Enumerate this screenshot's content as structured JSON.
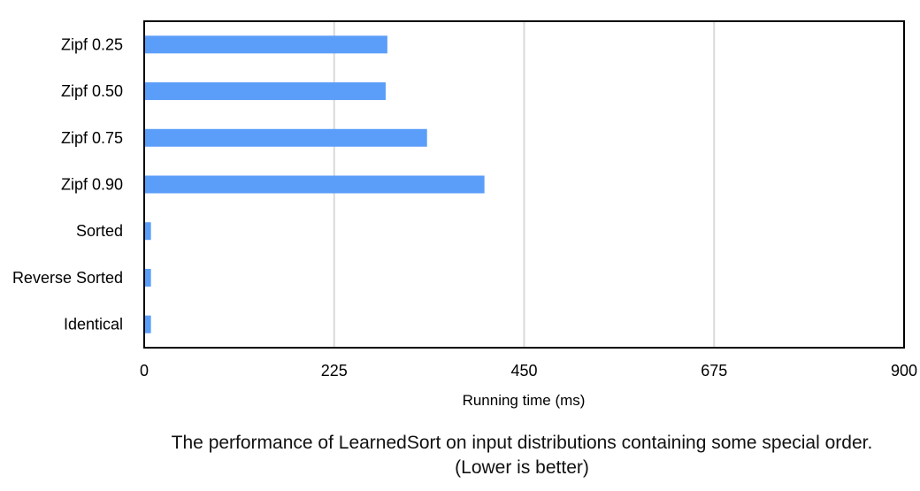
{
  "chart_data": {
    "type": "bar",
    "orientation": "horizontal",
    "categories": [
      "Zipf 0.25",
      "Zipf 0.50",
      "Zipf 0.75",
      "Zipf 0.90",
      "Sorted",
      "Reverse Sorted",
      "Identical"
    ],
    "values": [
      288,
      286,
      335,
      403,
      8,
      8,
      8
    ],
    "xlabel": "Running time (ms)",
    "ylabel": "",
    "xlim": [
      0,
      900
    ],
    "xticks": [
      "0",
      "225",
      "450",
      "675",
      "900"
    ],
    "grid": true,
    "bar_color": "#5b9ef9",
    "grid_color": "#d9d9d9"
  },
  "caption": "The performance of LearnedSort on input distributions containing some special order. (Lower is better)"
}
